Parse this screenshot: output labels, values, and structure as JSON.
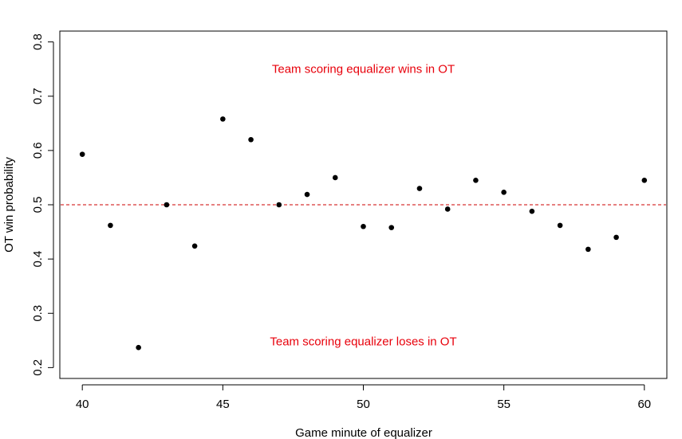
{
  "chart_data": {
    "type": "scatter",
    "title": "",
    "xlabel": "Game minute of equalizer",
    "ylabel": "OT win probability",
    "xlim": [
      39.2,
      60.8
    ],
    "ylim": [
      0.18,
      0.82
    ],
    "x_ticks": [
      40,
      45,
      50,
      55,
      60
    ],
    "y_ticks": [
      0.2,
      0.3,
      0.4,
      0.5,
      0.6,
      0.7,
      0.8
    ],
    "x_tick_labels": [
      "40",
      "45",
      "50",
      "55",
      "60"
    ],
    "y_tick_labels": [
      "0.2",
      "0.3",
      "0.4",
      "0.5",
      "0.6",
      "0.7",
      "0.8"
    ],
    "grid": false,
    "series": [
      {
        "name": "OT win probability",
        "x": [
          40,
          41,
          42,
          43,
          44,
          45,
          46,
          47,
          48,
          49,
          50,
          51,
          52,
          53,
          54,
          55,
          56,
          57,
          58,
          59,
          60
        ],
        "y": [
          0.593,
          0.462,
          0.237,
          0.5,
          0.424,
          0.658,
          0.62,
          0.5,
          0.519,
          0.55,
          0.46,
          0.458,
          0.53,
          0.492,
          0.545,
          0.523,
          0.488,
          0.462,
          0.418,
          0.44,
          0.545
        ],
        "color": "#000000"
      }
    ],
    "reference_line": {
      "y": 0.5,
      "style": "dashed",
      "color": "#cc0000"
    },
    "annotations": [
      {
        "text": "Team scoring equalizer wins in OT",
        "x": 50,
        "y": 0.75,
        "color": "#e8000b"
      },
      {
        "text": "Team scoring equalizer loses in OT",
        "x": 50,
        "y": 0.248,
        "color": "#e8000b"
      }
    ]
  }
}
